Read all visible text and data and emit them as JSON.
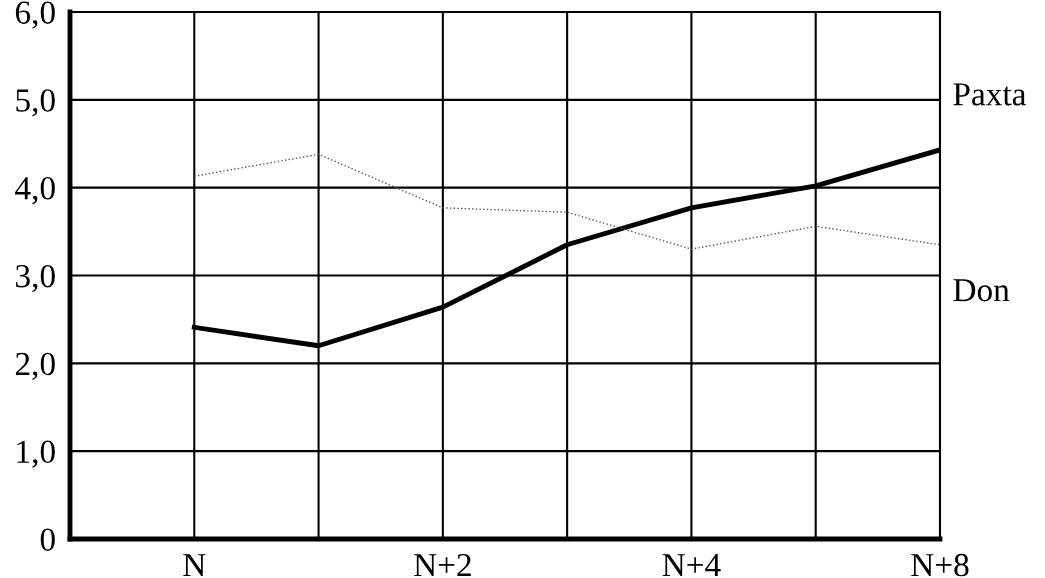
{
  "chart_data": {
    "type": "line",
    "categories": [
      "N",
      null,
      "N+2",
      null,
      "N+4",
      null,
      "N+8"
    ],
    "series": [
      {
        "name": "Paxta",
        "color": "#000000",
        "line_style": "solid",
        "values": [
          2.41,
          2.2,
          2.64,
          3.35,
          3.77,
          4.02,
          4.43
        ]
      },
      {
        "name": "Don",
        "color": "#555555",
        "line_style": "dotted",
        "values": [
          4.13,
          4.38,
          3.77,
          3.72,
          3.3,
          3.56,
          3.35
        ]
      }
    ],
    "ylim": [
      0,
      6
    ],
    "yticks": [
      {
        "value": 0,
        "label": "0"
      },
      {
        "value": 1,
        "label": "1,0"
      },
      {
        "value": 2,
        "label": "2,0"
      },
      {
        "value": 3,
        "label": "3,0"
      },
      {
        "value": 4,
        "label": "4,0"
      },
      {
        "value": 5,
        "label": "5,0"
      },
      {
        "value": 6,
        "label": "6,0"
      }
    ],
    "grid": true,
    "marker": "none"
  }
}
